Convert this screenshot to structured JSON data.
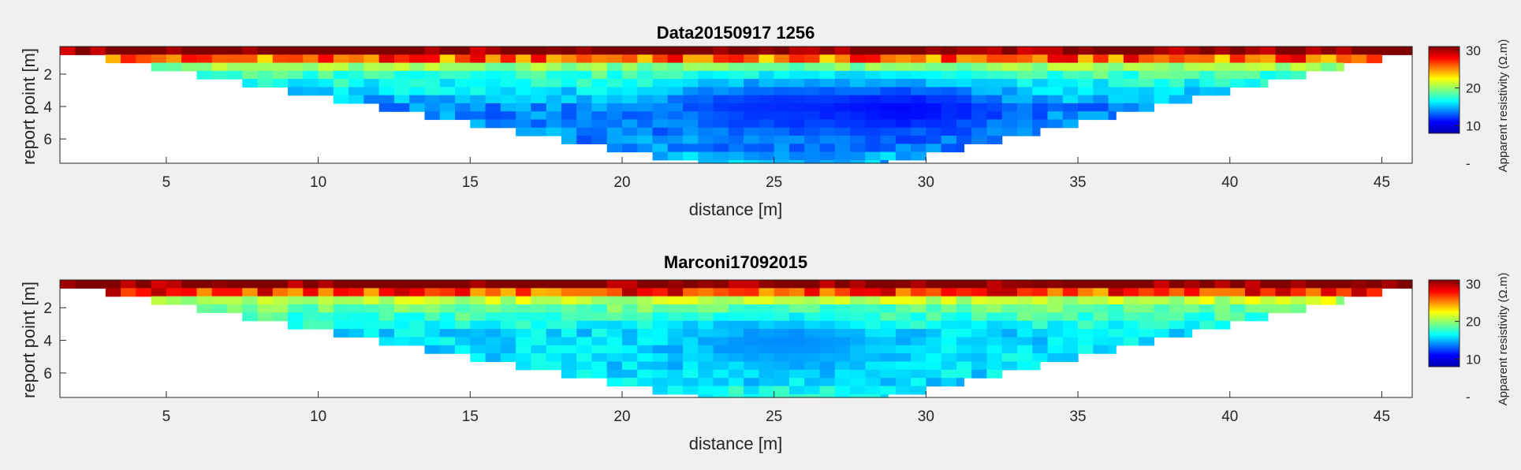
{
  "figure": {
    "background": "#f0f0f0"
  },
  "colormap": "jet",
  "chart_data": [
    {
      "type": "heatmap",
      "title": "Data20150917 1256",
      "xlabel": "distance [m]",
      "ylabel": "report point [m]",
      "x_ticks": [
        "5",
        "10",
        "15",
        "20",
        "25",
        "30",
        "35",
        "40",
        "45"
      ],
      "y_ticks": [
        "2",
        "4",
        "6"
      ],
      "xlim": [
        1.5,
        46
      ],
      "ylim": [
        7.5,
        0.3
      ],
      "pseudosection": {
        "electrode_spacing_m": 0.5,
        "first_x_m": 1.5,
        "last_x_m": 46,
        "levels": 15,
        "top_depth_m": 0.3,
        "level_step_m": 0.5
      },
      "grid": false,
      "colorbar": {
        "label": "Apparent resistivity (Ω.m)",
        "ticks": [
          "10",
          "20",
          "30"
        ],
        "range": [
          8,
          31
        ],
        "extra_tick_label": "-"
      },
      "values_by_level": [
        {
          "level": 1,
          "depth_range_m": [
            0.3,
            0.8
          ],
          "resistivity_ohm_m": 32
        },
        {
          "level": 2,
          "depth_range_m": [
            0.8,
            1.3
          ],
          "resistivity_ohm_m": 26
        },
        {
          "level": 3,
          "depth_range_m": [
            1.3,
            1.8
          ],
          "resistivity_ohm_m": 20
        },
        {
          "level": 4,
          "depth_range_m": [
            1.8,
            2.3
          ],
          "resistivity_ohm_m": 18
        },
        {
          "level": 5,
          "depth_range_m": [
            2.3,
            2.8
          ],
          "resistivity_ohm_m": 17
        },
        {
          "level": 6,
          "depth_range_m": [
            2.8,
            3.3
          ],
          "resistivity_ohm_m": 16
        },
        {
          "level": 7,
          "depth_range_m": [
            3.3,
            3.8
          ],
          "resistivity_ohm_m": 15
        },
        {
          "level": 8,
          "depth_range_m": [
            3.8,
            4.3
          ],
          "resistivity_ohm_m": 14
        },
        {
          "level": 9,
          "depth_range_m": [
            4.3,
            4.8
          ],
          "resistivity_ohm_m": 14
        },
        {
          "level": 10,
          "depth_range_m": [
            4.8,
            5.3
          ],
          "resistivity_ohm_m": 14
        },
        {
          "level": 11,
          "depth_range_m": [
            5.3,
            5.8
          ],
          "resistivity_ohm_m": 14
        },
        {
          "level": 12,
          "depth_range_m": [
            5.8,
            6.3
          ],
          "resistivity_ohm_m": 14
        },
        {
          "level": 13,
          "depth_range_m": [
            6.3,
            6.8
          ],
          "resistivity_ohm_m": 14
        },
        {
          "level": 14,
          "depth_range_m": [
            6.8,
            7.3
          ],
          "resistivity_ohm_m": 15
        },
        {
          "level": 15,
          "depth_range_m": [
            7.3,
            7.5
          ],
          "resistivity_ohm_m": 15
        }
      ],
      "low_anomalies": [
        {
          "x_m": 24.5,
          "depth_m": 4.0,
          "resistivity_ohm_m": 12
        },
        {
          "x_m": 29.0,
          "depth_m": 4.2,
          "resistivity_ohm_m": 11
        }
      ]
    },
    {
      "type": "heatmap",
      "title": "Marconi17092015",
      "xlabel": "distance [m]",
      "ylabel": "report point [m]",
      "x_ticks": [
        "5",
        "10",
        "15",
        "20",
        "25",
        "30",
        "35",
        "40",
        "45"
      ],
      "y_ticks": [
        "2",
        "4",
        "6"
      ],
      "xlim": [
        1.5,
        46
      ],
      "ylim": [
        7.5,
        0.3
      ],
      "pseudosection": {
        "electrode_spacing_m": 0.5,
        "first_x_m": 1.5,
        "last_x_m": 46,
        "levels": 15,
        "top_depth_m": 0.3,
        "level_step_m": 0.5
      },
      "grid": false,
      "colorbar": {
        "label": "Apparent resistivity (Ω.m)",
        "ticks": [
          "10",
          "20",
          "30"
        ],
        "range": [
          8,
          31
        ],
        "extra_tick_label": "-"
      },
      "values_by_level": [
        {
          "level": 1,
          "depth_range_m": [
            0.3,
            0.8
          ],
          "resistivity_ohm_m": 32
        },
        {
          "level": 2,
          "depth_range_m": [
            0.8,
            1.3
          ],
          "resistivity_ohm_m": 27
        },
        {
          "level": 3,
          "depth_range_m": [
            1.3,
            1.8
          ],
          "resistivity_ohm_m": 21
        },
        {
          "level": 4,
          "depth_range_m": [
            1.8,
            2.3
          ],
          "resistivity_ohm_m": 19
        },
        {
          "level": 5,
          "depth_range_m": [
            2.3,
            2.8
          ],
          "resistivity_ohm_m": 18
        },
        {
          "level": 6,
          "depth_range_m": [
            2.8,
            3.3
          ],
          "resistivity_ohm_m": 17
        },
        {
          "level": 7,
          "depth_range_m": [
            3.3,
            3.8
          ],
          "resistivity_ohm_m": 16
        },
        {
          "level": 8,
          "depth_range_m": [
            3.8,
            4.3
          ],
          "resistivity_ohm_m": 16
        },
        {
          "level": 9,
          "depth_range_m": [
            4.3,
            4.8
          ],
          "resistivity_ohm_m": 16
        },
        {
          "level": 10,
          "depth_range_m": [
            4.8,
            5.3
          ],
          "resistivity_ohm_m": 16
        },
        {
          "level": 11,
          "depth_range_m": [
            5.3,
            5.8
          ],
          "resistivity_ohm_m": 16
        },
        {
          "level": 12,
          "depth_range_m": [
            5.8,
            6.3
          ],
          "resistivity_ohm_m": 16
        },
        {
          "level": 13,
          "depth_range_m": [
            6.3,
            6.8
          ],
          "resistivity_ohm_m": 16
        },
        {
          "level": 14,
          "depth_range_m": [
            6.8,
            7.3
          ],
          "resistivity_ohm_m": 17
        },
        {
          "level": 15,
          "depth_range_m": [
            7.3,
            7.5
          ],
          "resistivity_ohm_m": 17
        }
      ],
      "low_anomalies": [
        {
          "x_m": 25.0,
          "depth_m": 4.2,
          "resistivity_ohm_m": 14
        }
      ]
    }
  ]
}
